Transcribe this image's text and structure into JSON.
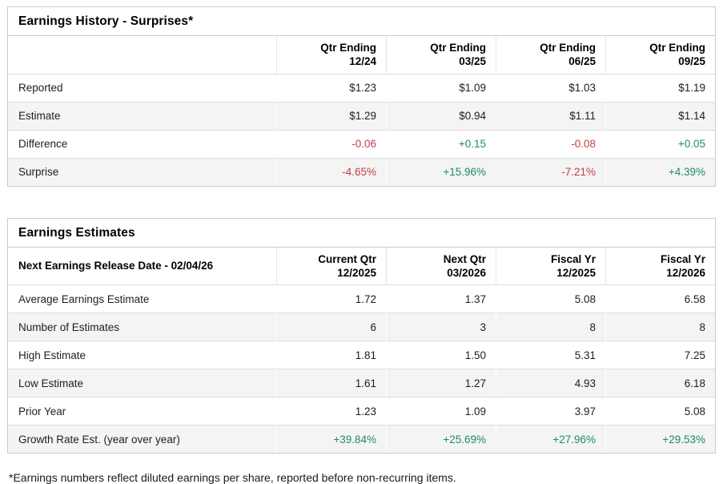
{
  "colors": {
    "positive": "#1e8a6b",
    "negative": "#c43c48"
  },
  "earnings_history": {
    "title": "Earnings History - Surprises*",
    "columns": [
      "Qtr Ending\n12/24",
      "Qtr Ending\n03/25",
      "Qtr Ending\n06/25",
      "Qtr Ending\n09/25"
    ],
    "rows": [
      {
        "label": "Reported",
        "values": [
          "$1.23",
          "$1.09",
          "$1.03",
          "$1.19"
        ]
      },
      {
        "label": "Estimate",
        "values": [
          "$1.29",
          "$0.94",
          "$1.11",
          "$1.14"
        ]
      },
      {
        "label": "Difference",
        "values": [
          "-0.06",
          "+0.15",
          "-0.08",
          "+0.05"
        ]
      },
      {
        "label": "Surprise",
        "values": [
          "-4.65%",
          "+15.96%",
          "-7.21%",
          "+4.39%"
        ]
      }
    ]
  },
  "earnings_estimates": {
    "title": "Earnings Estimates",
    "corner_label": "Next Earnings Release Date - 02/04/26",
    "columns": [
      "Current Qtr\n12/2025",
      "Next Qtr\n03/2026",
      "Fiscal Yr\n12/2025",
      "Fiscal Yr\n12/2026"
    ],
    "rows": [
      {
        "label": "Average Earnings Estimate",
        "values": [
          "1.72",
          "1.37",
          "5.08",
          "6.58"
        ]
      },
      {
        "label": "Number of Estimates",
        "values": [
          "6",
          "3",
          "8",
          "8"
        ]
      },
      {
        "label": "High Estimate",
        "values": [
          "1.81",
          "1.50",
          "5.31",
          "7.25"
        ]
      },
      {
        "label": "Low Estimate",
        "values": [
          "1.61",
          "1.27",
          "4.93",
          "6.18"
        ]
      },
      {
        "label": "Prior Year",
        "values": [
          "1.23",
          "1.09",
          "3.97",
          "5.08"
        ]
      },
      {
        "label": "Growth Rate Est. (year over year)",
        "values": [
          "+39.84%",
          "+25.69%",
          "+27.96%",
          "+29.53%"
        ]
      }
    ]
  },
  "footnote": "*Earnings numbers reflect diluted earnings per share, reported before non-recurring items."
}
